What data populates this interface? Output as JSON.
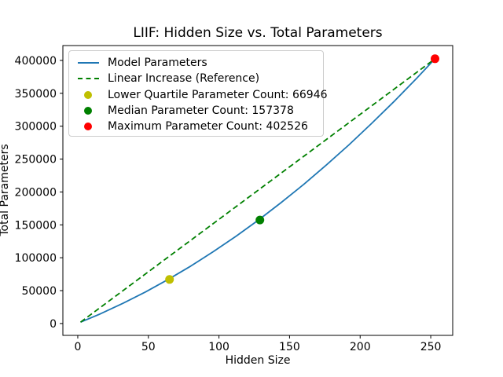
{
  "chart_data": {
    "type": "line",
    "title": "LIIF: Hidden Size vs. Total Parameters",
    "xlabel": "Hidden Size",
    "ylabel": "Total Parameters",
    "xlim": [
      -10.55,
      265.55
    ],
    "ylim": [
      -18032,
      422553
    ],
    "x_ticks": [
      0,
      50,
      100,
      150,
      200,
      250
    ],
    "y_ticks": [
      0,
      50000,
      100000,
      150000,
      200000,
      250000,
      300000,
      350000,
      400000
    ],
    "grid": false,
    "frame_color": "#000000",
    "legend_position": "upper left",
    "series": [
      {
        "name": "Model Parameters",
        "color": "#1f77b4",
        "style": "solid",
        "x": [
          2,
          16,
          32,
          48,
          64,
          80,
          96,
          112,
          128,
          144,
          160,
          176,
          192,
          208,
          224,
          240,
          253
        ],
        "y": [
          1995,
          14713,
          30639,
          48050,
          66946,
          87327,
          109193,
          132543,
          157378,
          183698,
          211503,
          240793,
          271567,
          303826,
          337570,
          372799,
          402526
        ]
      },
      {
        "name": "Linear Increase (Reference)",
        "color": "#008000",
        "style": "dashed",
        "x": [
          2,
          253
        ],
        "y": [
          1995,
          402526
        ]
      }
    ],
    "markers": [
      {
        "name": "Lower Quartile Parameter Count: 66946",
        "color": "#bfbf00",
        "x": 65,
        "y": 66946
      },
      {
        "name": "Median Parameter Count: 157378",
        "color": "#008000",
        "x": 129,
        "y": 157378
      },
      {
        "name": "Maximum Parameter Count: 402526",
        "color": "#ff0000",
        "x": 253,
        "y": 402526
      }
    ],
    "legend": {
      "entries": [
        {
          "swatch": "line",
          "color": "#1f77b4",
          "label": "Model Parameters"
        },
        {
          "swatch": "dashed",
          "color": "#008000",
          "label": "Linear Increase (Reference)"
        },
        {
          "swatch": "dot",
          "color": "#bfbf00",
          "label": "Lower Quartile Parameter Count: 66946"
        },
        {
          "swatch": "dot",
          "color": "#008000",
          "label": "Median Parameter Count: 157378"
        },
        {
          "swatch": "dot",
          "color": "#ff0000",
          "label": "Maximum Parameter Count: 402526"
        }
      ]
    }
  }
}
